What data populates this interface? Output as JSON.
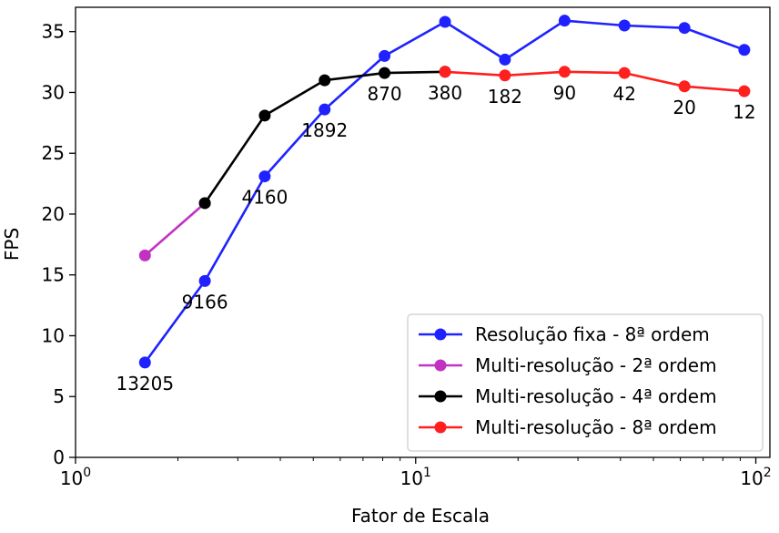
{
  "chart_data": {
    "type": "line",
    "title": "",
    "xlabel": "Fator de Escala",
    "ylabel": "FPS",
    "xscale": "log",
    "xlim": [
      1,
      110
    ],
    "ylim": [
      0,
      37
    ],
    "xticks": [
      {
        "value": 1,
        "base": "10",
        "exp": "0"
      },
      {
        "value": 10,
        "base": "10",
        "exp": "1"
      },
      {
        "value": 100,
        "base": "10",
        "exp": "2"
      }
    ],
    "yticks": [
      0,
      5,
      10,
      15,
      20,
      25,
      30,
      35
    ],
    "grid": false,
    "legend_position": "bottom-right",
    "series": [
      {
        "name": "Resolução fixa - 8ª ordem",
        "color": "#1f22ff",
        "x": [
          1.6,
          2.4,
          3.6,
          5.4,
          8.1,
          12.2,
          18.3,
          27.4,
          41.1,
          61.7,
          92.5
        ],
        "y": [
          7.8,
          14.5,
          23.1,
          28.6,
          33.0,
          35.8,
          32.7,
          35.9,
          35.5,
          35.3,
          33.5
        ]
      },
      {
        "name": "Multi-resolução - 2ª ordem",
        "color": "#c232c2",
        "x": [
          1.6,
          2.4
        ],
        "y": [
          16.6,
          20.9
        ]
      },
      {
        "name": "Multi-resolução - 4ª ordem",
        "color": "#000000",
        "x": [
          2.4,
          3.6,
          5.4,
          8.1,
          12.2
        ],
        "y": [
          20.9,
          28.1,
          31.0,
          31.6,
          31.7
        ]
      },
      {
        "name": "Multi-resolução - 8ª ordem",
        "color": "#ff1f1f",
        "x": [
          12.2,
          18.3,
          27.4,
          41.1,
          61.7,
          92.5
        ],
        "y": [
          31.7,
          31.4,
          31.7,
          31.6,
          30.5,
          30.1
        ]
      }
    ],
    "annotations": [
      {
        "text": "13205",
        "x": 1.6,
        "y": 7.8,
        "pos": "below"
      },
      {
        "text": "9166",
        "x": 2.4,
        "y": 14.5,
        "pos": "below"
      },
      {
        "text": "4160",
        "x": 3.6,
        "y": 23.1,
        "pos": "below"
      },
      {
        "text": "1892",
        "x": 5.4,
        "y": 28.6,
        "pos": "below"
      },
      {
        "text": "870",
        "x": 8.1,
        "y": 31.6,
        "pos": "below"
      },
      {
        "text": "380",
        "x": 12.2,
        "y": 31.7,
        "pos": "below"
      },
      {
        "text": "182",
        "x": 18.3,
        "y": 31.4,
        "pos": "below"
      },
      {
        "text": "90",
        "x": 27.4,
        "y": 31.7,
        "pos": "below"
      },
      {
        "text": "42",
        "x": 41.1,
        "y": 31.6,
        "pos": "below"
      },
      {
        "text": "20",
        "x": 61.7,
        "y": 30.5,
        "pos": "below"
      },
      {
        "text": "12",
        "x": 92.5,
        "y": 30.1,
        "pos": "below"
      }
    ]
  }
}
